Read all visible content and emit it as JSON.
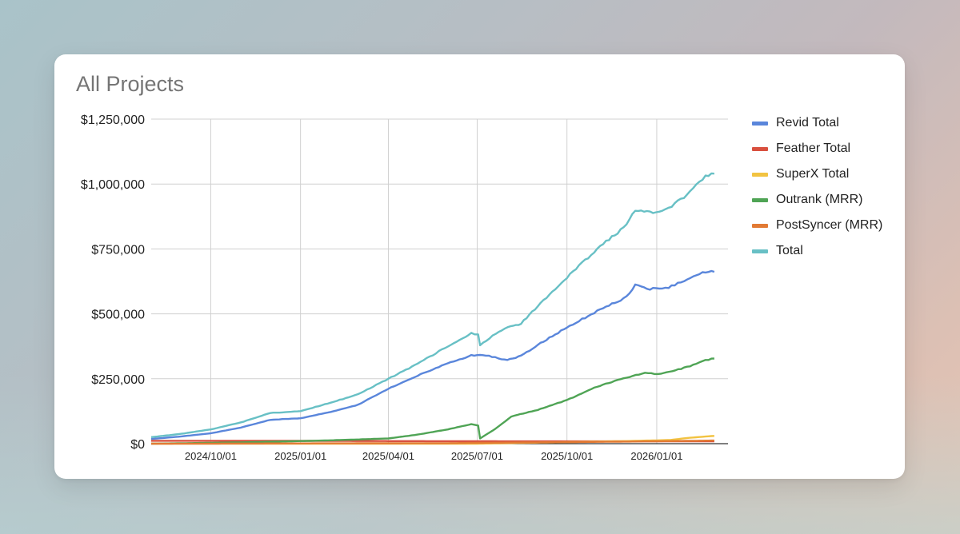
{
  "chart_data": {
    "type": "line",
    "title": "All Projects",
    "xlabel": "",
    "ylabel": "",
    "ylim": [
      0,
      1250000
    ],
    "xlim": [
      "2024-08-01",
      "2026-03-15"
    ],
    "y_ticks": [
      0,
      250000,
      500000,
      750000,
      1000000,
      1250000
    ],
    "y_tick_labels": [
      "$0",
      "$250,000",
      "$500,000",
      "$750,000",
      "$1,000,000",
      "$1,250,000"
    ],
    "x_ticks": [
      "2024-10-01",
      "2025-01-01",
      "2025-04-01",
      "2025-07-01",
      "2025-10-01",
      "2026-01-01"
    ],
    "x_tick_labels": [
      "2024/10/01",
      "2025/01/01",
      "2025/04/01",
      "2025/07/01",
      "2025/10/01",
      "2026/01/01"
    ],
    "grid": true,
    "legend_position": "right",
    "series": [
      {
        "name": "Revid Total",
        "color": "#5a86db",
        "points": [
          [
            "2024-08-01",
            18000
          ],
          [
            "2024-09-01",
            28000
          ],
          [
            "2024-10-01",
            40000
          ],
          [
            "2024-11-01",
            62000
          ],
          [
            "2024-12-01",
            92000
          ],
          [
            "2025-01-01",
            98000
          ],
          [
            "2025-02-01",
            122000
          ],
          [
            "2025-03-01",
            150000
          ],
          [
            "2025-04-01",
            212000
          ],
          [
            "2025-05-01",
            262000
          ],
          [
            "2025-06-01",
            310000
          ],
          [
            "2025-06-25",
            340000
          ],
          [
            "2025-07-10",
            340000
          ],
          [
            "2025-08-01",
            322000
          ],
          [
            "2025-08-15",
            338000
          ],
          [
            "2025-09-01",
            380000
          ],
          [
            "2025-10-01",
            448000
          ],
          [
            "2025-11-01",
            510000
          ],
          [
            "2025-12-01",
            565000
          ],
          [
            "2025-12-10",
            610000
          ],
          [
            "2025-12-25",
            596000
          ],
          [
            "2026-01-10",
            598000
          ],
          [
            "2026-02-01",
            630000
          ],
          [
            "2026-02-20",
            662000
          ],
          [
            "2026-03-01",
            662000
          ]
        ]
      },
      {
        "name": "Feather Total",
        "color": "#d9503f",
        "points": [
          [
            "2024-08-01",
            11000
          ],
          [
            "2024-12-01",
            11000
          ],
          [
            "2025-04-01",
            10000
          ],
          [
            "2025-08-01",
            9000
          ],
          [
            "2025-12-01",
            9000
          ],
          [
            "2026-03-01",
            9000
          ]
        ]
      },
      {
        "name": "SuperX Total",
        "color": "#f2c341",
        "points": [
          [
            "2024-08-01",
            0
          ],
          [
            "2025-07-01",
            0
          ],
          [
            "2025-09-01",
            4000
          ],
          [
            "2025-12-01",
            10000
          ],
          [
            "2026-01-15",
            14000
          ],
          [
            "2026-02-01",
            22000
          ],
          [
            "2026-03-01",
            30000
          ]
        ]
      },
      {
        "name": "Outrank (MRR)",
        "color": "#4fa455",
        "points": [
          [
            "2024-08-01",
            0
          ],
          [
            "2024-11-01",
            5000
          ],
          [
            "2025-01-01",
            10000
          ],
          [
            "2025-02-01",
            13000
          ],
          [
            "2025-04-01",
            20000
          ],
          [
            "2025-05-01",
            35000
          ],
          [
            "2025-06-01",
            55000
          ],
          [
            "2025-06-25",
            75000
          ],
          [
            "2025-07-02",
            70000
          ],
          [
            "2025-07-04",
            20000
          ],
          [
            "2025-07-20",
            58000
          ],
          [
            "2025-08-05",
            105000
          ],
          [
            "2025-09-01",
            130000
          ],
          [
            "2025-10-01",
            168000
          ],
          [
            "2025-11-01",
            220000
          ],
          [
            "2025-12-01",
            255000
          ],
          [
            "2025-12-20",
            272000
          ],
          [
            "2026-01-05",
            268000
          ],
          [
            "2026-02-01",
            295000
          ],
          [
            "2026-02-20",
            322000
          ],
          [
            "2026-03-01",
            328000
          ]
        ]
      },
      {
        "name": "PostSyncer (MRR)",
        "color": "#e27a34",
        "points": [
          [
            "2024-08-01",
            0
          ],
          [
            "2025-06-01",
            2000
          ],
          [
            "2025-09-01",
            5000
          ],
          [
            "2025-12-01",
            8000
          ],
          [
            "2026-03-01",
            12000
          ]
        ]
      },
      {
        "name": "Total",
        "color": "#68c0c5",
        "points": [
          [
            "2024-08-01",
            25000
          ],
          [
            "2024-09-01",
            38000
          ],
          [
            "2024-10-01",
            55000
          ],
          [
            "2024-11-01",
            82000
          ],
          [
            "2024-12-01",
            118000
          ],
          [
            "2025-01-01",
            125000
          ],
          [
            "2025-02-01",
            158000
          ],
          [
            "2025-03-01",
            190000
          ],
          [
            "2025-04-01",
            250000
          ],
          [
            "2025-05-01",
            308000
          ],
          [
            "2025-06-01",
            375000
          ],
          [
            "2025-06-25",
            425000
          ],
          [
            "2025-07-02",
            420000
          ],
          [
            "2025-07-04",
            378000
          ],
          [
            "2025-07-20",
            425000
          ],
          [
            "2025-08-01",
            450000
          ],
          [
            "2025-08-15",
            462000
          ],
          [
            "2025-09-01",
            530000
          ],
          [
            "2025-10-01",
            640000
          ],
          [
            "2025-11-01",
            750000
          ],
          [
            "2025-12-01",
            840000
          ],
          [
            "2025-12-10",
            900000
          ],
          [
            "2025-12-25",
            890000
          ],
          [
            "2026-01-10",
            898000
          ],
          [
            "2026-02-01",
            960000
          ],
          [
            "2026-02-20",
            1030000
          ],
          [
            "2026-03-01",
            1040000
          ]
        ]
      }
    ]
  }
}
